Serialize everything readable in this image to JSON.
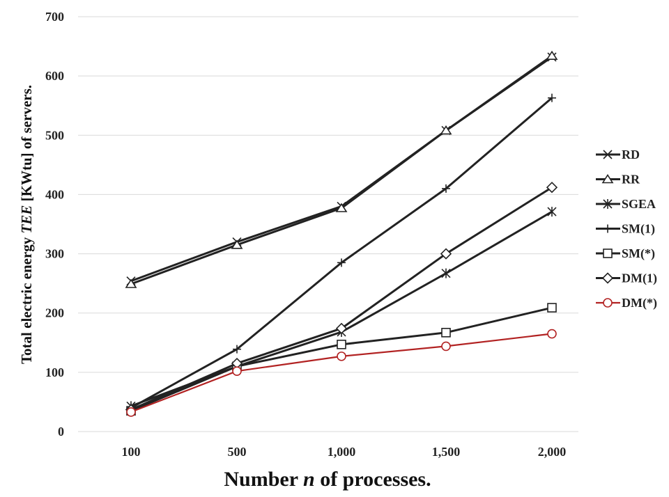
{
  "chart_data": {
    "type": "line",
    "categories": [
      "100",
      "500",
      "1,000",
      "1,500",
      "2,000"
    ],
    "ylim": [
      0,
      700
    ],
    "yticks": [
      "0",
      "100",
      "200",
      "300",
      "400",
      "500",
      "600",
      "700"
    ],
    "ytick_values": [
      0,
      100,
      200,
      300,
      400,
      500,
      600,
      700
    ],
    "grid": true,
    "legend_position": "right",
    "xlabel_parts": [
      "Number ",
      "n",
      " of processes."
    ],
    "ylabel_parts": [
      "Total electric energy ",
      "TEE",
      " [KWtu] of servers."
    ],
    "series": [
      {
        "name": "RD",
        "marker": "x",
        "color": "#222222",
        "values": [
          254,
          320,
          380,
          508,
          632
        ]
      },
      {
        "name": "RR",
        "marker": "triangle",
        "color": "#222222",
        "values": [
          249,
          315,
          377,
          508,
          634
        ]
      },
      {
        "name": "SGEA",
        "marker": "star",
        "color": "#222222",
        "values": [
          43,
          110,
          168,
          267,
          371
        ]
      },
      {
        "name": "SM(1)",
        "marker": "plus",
        "color": "#222222",
        "values": [
          40,
          139,
          285,
          410,
          563
        ]
      },
      {
        "name": "SM(*)",
        "marker": "square",
        "color": "#222222",
        "values": [
          35,
          110,
          147,
          167,
          209
        ]
      },
      {
        "name": "DM(1)",
        "marker": "diamond",
        "color": "#222222",
        "values": [
          37,
          115,
          174,
          300,
          412
        ]
      },
      {
        "name": "DM(*)",
        "marker": "circle",
        "color": "#b22222",
        "values": [
          33,
          102,
          127,
          144,
          165
        ]
      }
    ]
  }
}
